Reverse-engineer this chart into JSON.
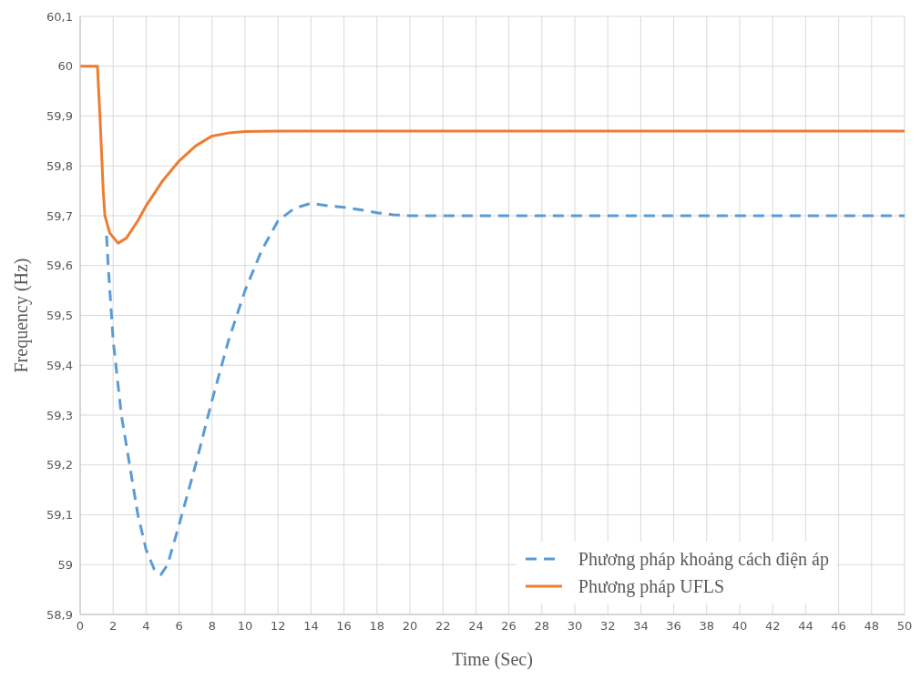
{
  "chart_data": {
    "type": "line",
    "xlabel": "Time (Sec)",
    "ylabel": "Frequency (Hz)",
    "xlim": [
      0,
      50
    ],
    "xticks": [
      0,
      2,
      4,
      6,
      8,
      10,
      12,
      14,
      16,
      18,
      20,
      22,
      24,
      26,
      28,
      30,
      32,
      34,
      36,
      38,
      40,
      42,
      44,
      46,
      48,
      50
    ],
    "ylim": [
      58.9,
      60.1
    ],
    "yticks": [
      {
        "value": 58.9,
        "label": "58,9"
      },
      {
        "value": 59,
        "label": "59"
      },
      {
        "value": 59.1,
        "label": "59,1"
      },
      {
        "value": 59.2,
        "label": "59,2"
      },
      {
        "value": 59.3,
        "label": "59,3"
      },
      {
        "value": 59.4,
        "label": "59,4"
      },
      {
        "value": 59.5,
        "label": "59,5"
      },
      {
        "value": 59.6,
        "label": "59,6"
      },
      {
        "value": 59.7,
        "label": "59,7"
      },
      {
        "value": 59.8,
        "label": "59,8"
      },
      {
        "value": 59.9,
        "label": "59,9"
      },
      {
        "value": 60,
        "label": "60"
      },
      {
        "value": 60.1,
        "label": "60,1"
      }
    ],
    "grid": true,
    "legend": "bottom right",
    "marker": "none",
    "series": [
      {
        "name": "Phương pháp khoảng cách điện áp",
        "color": "#5b9bd5",
        "line_style": "dashed",
        "x": [
          1.6,
          1.7,
          2,
          2.5,
          3,
          3.5,
          4,
          4.5,
          4.9,
          5.3,
          6,
          7,
          8,
          9,
          10,
          11,
          12,
          13,
          14,
          15,
          16,
          17,
          18,
          19,
          20,
          50
        ],
        "values": [
          59.66,
          59.6,
          59.45,
          59.3,
          59.2,
          59.1,
          59.03,
          58.99,
          58.98,
          59,
          59.08,
          59.2,
          59.33,
          59.45,
          59.55,
          59.63,
          59.69,
          59.715,
          59.725,
          59.72,
          59.717,
          59.712,
          59.706,
          59.702,
          59.7,
          59.7
        ]
      },
      {
        "name": "Phương pháp UFLS",
        "color": "#ed7d31",
        "line_style": "solid",
        "x": [
          0,
          1,
          1.05,
          1.2,
          1.4,
          1.5,
          1.8,
          2.3,
          2.8,
          3.5,
          4,
          5,
          6,
          7,
          8,
          9,
          10,
          12,
          50
        ],
        "values": [
          60,
          60,
          60,
          59.9,
          59.75,
          59.7,
          59.665,
          59.645,
          59.655,
          59.69,
          59.72,
          59.77,
          59.81,
          59.84,
          59.86,
          59.866,
          59.869,
          59.87,
          59.87
        ]
      }
    ]
  }
}
